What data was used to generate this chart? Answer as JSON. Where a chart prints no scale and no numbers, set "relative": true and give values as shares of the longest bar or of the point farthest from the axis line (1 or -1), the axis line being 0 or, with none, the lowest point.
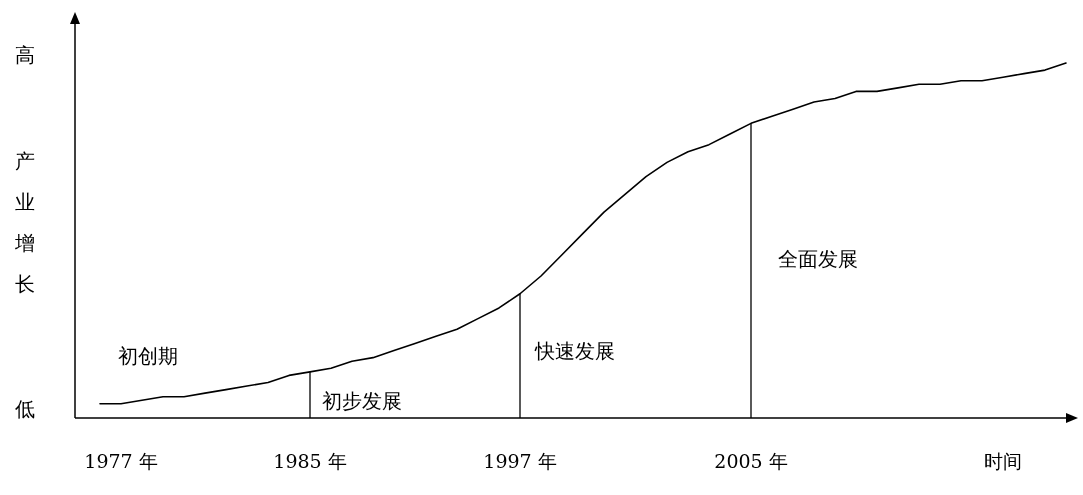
{
  "chart_data": {
    "type": "line",
    "relative": true,
    "ylabel": "产业增长",
    "categories": [
      null,
      "1977 年",
      null,
      null,
      null,
      null,
      null,
      null,
      null,
      null,
      "1985 年",
      null,
      null,
      null,
      null,
      null,
      null,
      null,
      null,
      null,
      "1997 年",
      null,
      null,
      null,
      null,
      null,
      null,
      null,
      null,
      null,
      null,
      "2005 年",
      null,
      null,
      null,
      null,
      null,
      null,
      null,
      null,
      null,
      null,
      null,
      "时间",
      null,
      null,
      null
    ],
    "series": [
      {
        "color": "#000000",
        "values": [
          0.04,
          0.04,
          0.05,
          0.06,
          0.06,
          0.07,
          0.08,
          0.09,
          0.1,
          0.12,
          0.13,
          0.14,
          0.16,
          0.17,
          0.19,
          0.21,
          0.23,
          0.25,
          0.28,
          0.31,
          0.35,
          0.4,
          0.46,
          0.52,
          0.58,
          0.63,
          0.68,
          0.72,
          0.75,
          0.77,
          0.8,
          0.83,
          0.85,
          0.87,
          0.89,
          0.9,
          0.92,
          0.92,
          0.93,
          0.94,
          0.94,
          0.95,
          0.95,
          0.96,
          0.97,
          0.98,
          1
        ]
      }
    ],
    "ref_lines": [
      {
        "axis": "x",
        "value": "1985 年",
        "color": "#000000"
      },
      {
        "axis": "x",
        "value": "1997 年",
        "color": "#000000"
      },
      {
        "axis": "x",
        "value": "2005 年",
        "color": "#000000"
      }
    ],
    "annotations": [
      "高",
      "低",
      "初创期",
      "初步发展",
      "快速发展",
      "全面发展"
    ],
    "marker": "none",
    "line_style": "solid",
    "grid": false
  }
}
